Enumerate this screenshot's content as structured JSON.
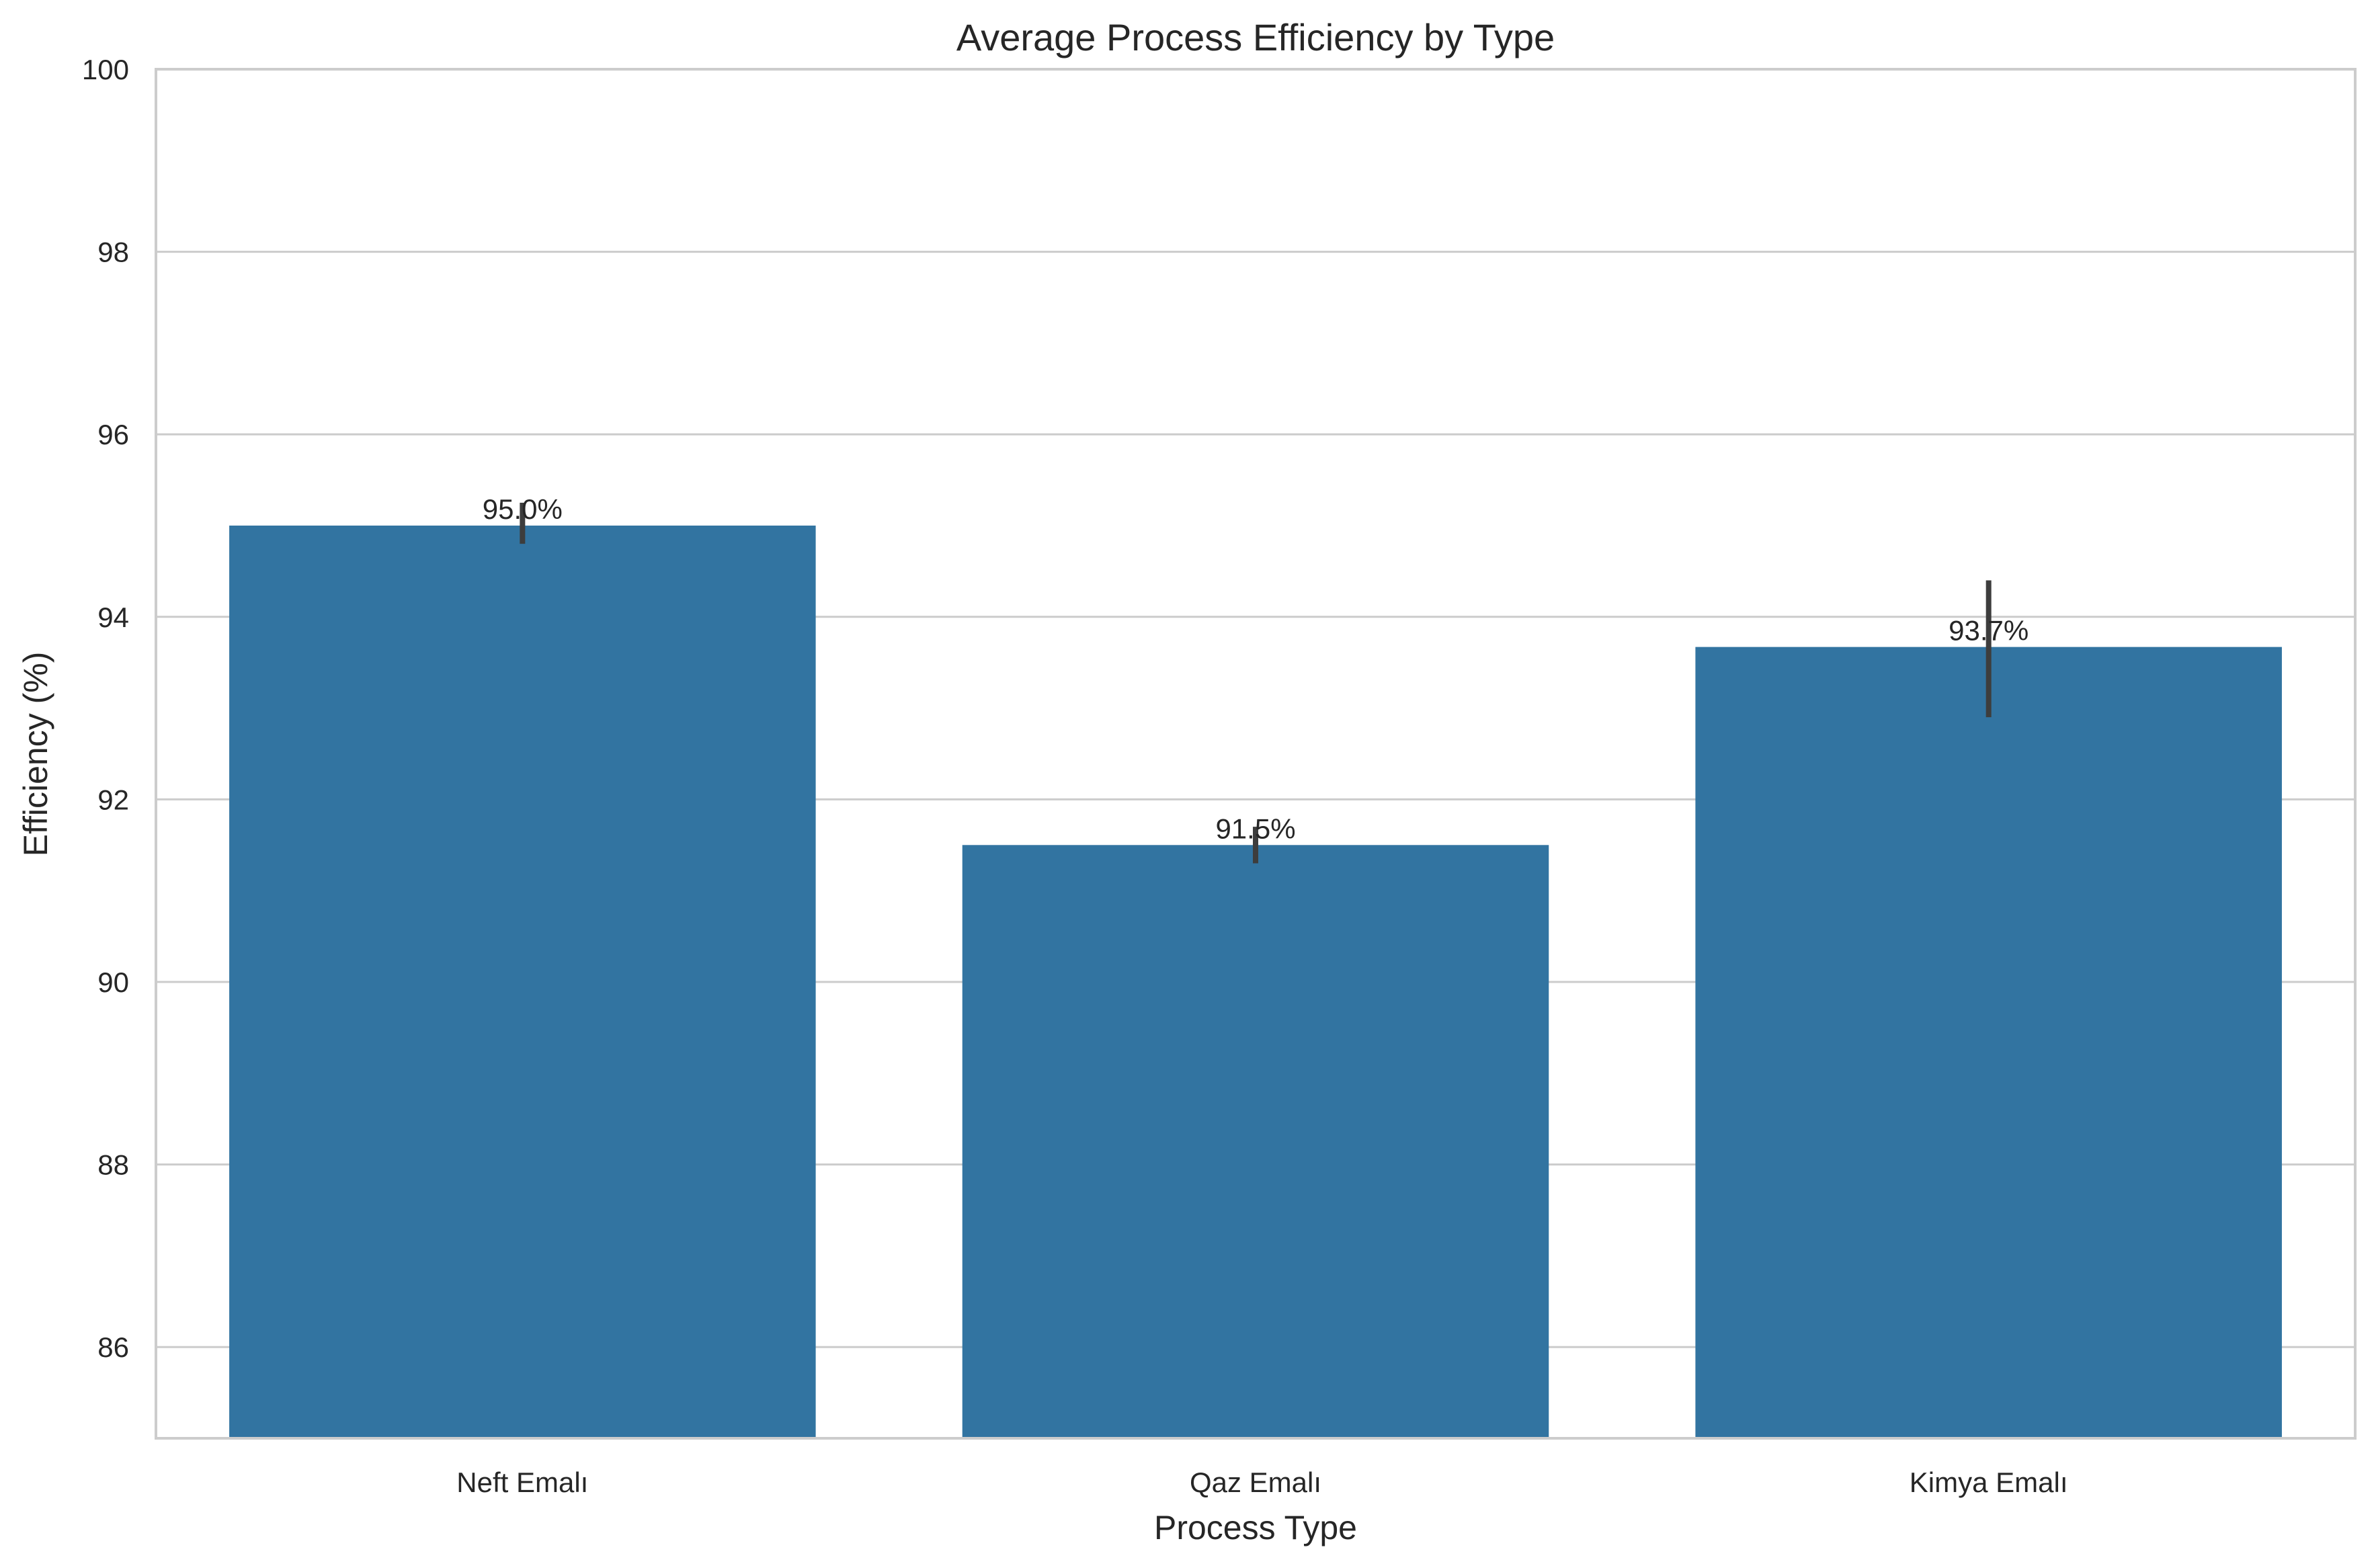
{
  "chart_data": {
    "type": "bar",
    "title": "Average Process Efficiency by Type",
    "xlabel": "Process Type",
    "ylabel": "Efficiency (%)",
    "categories": [
      "Neft Emalı",
      "Qaz Emalı",
      "Kimya Emalı"
    ],
    "values": [
      95.0,
      91.5,
      93.67
    ],
    "value_labels": [
      "95.0%",
      "91.5%",
      "93.7%"
    ],
    "error_bars": [
      {
        "low": 94.8,
        "high": 95.25
      },
      {
        "low": 91.3,
        "high": 91.7
      },
      {
        "low": 92.9,
        "high": 94.4
      }
    ],
    "ylim": [
      85,
      100
    ],
    "yticks": [
      86,
      88,
      90,
      92,
      94,
      96,
      98,
      100
    ],
    "grid": "horizontal",
    "bar_color": "#3274a1",
    "errorbar_color": "#3d3d3d",
    "grid_color": "#cccccc",
    "spine_color": "#cccccc"
  }
}
